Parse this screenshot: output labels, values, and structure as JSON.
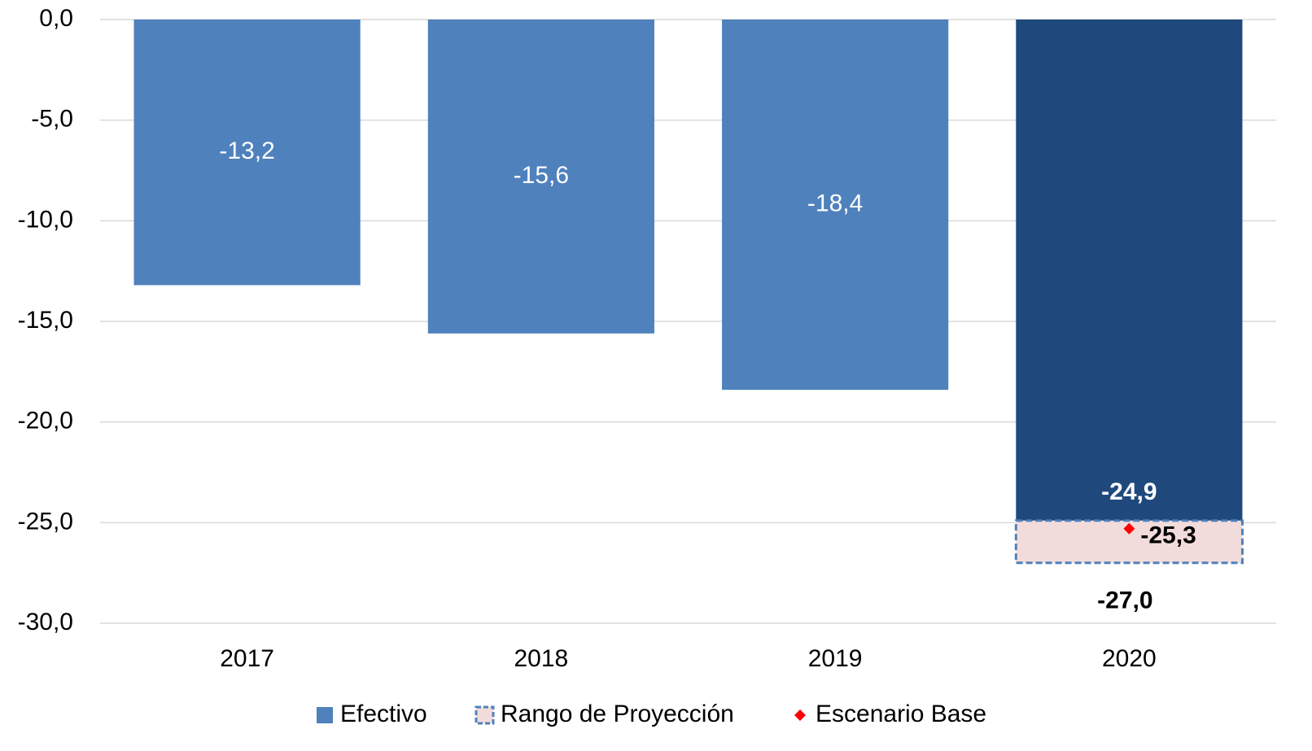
{
  "chart_data": {
    "type": "bar",
    "categories": [
      "2017",
      "2018",
      "2019",
      "2020"
    ],
    "series": [
      {
        "name": "Efectivo",
        "color": "#4f81bd",
        "colors": [
          "#4f81bd",
          "#4f81bd",
          "#4f81bd",
          "#1f497d"
        ],
        "values": [
          -13.2,
          -15.6,
          -18.4,
          -24.9
        ],
        "value_labels": [
          "-13,2",
          "-15,6",
          "-18,4",
          "-24,9"
        ]
      },
      {
        "name": "Rango de Proyección",
        "color": "#f2dcdb",
        "edge_color": "#4f81bd",
        "values": [
          null,
          null,
          null,
          -27.0
        ],
        "value_labels": [
          null,
          null,
          null,
          "-27,0"
        ]
      },
      {
        "name": "Escenario Base",
        "color": "#ff0000",
        "values": [
          null,
          null,
          null,
          -25.3
        ],
        "value_labels": [
          null,
          null,
          null,
          "-25,3"
        ]
      }
    ],
    "ylim": [
      -30,
      0
    ],
    "yticks": [
      {
        "value": 0,
        "label": "0,0"
      },
      {
        "value": -5,
        "label": "-5,0"
      },
      {
        "value": -10,
        "label": "-10,0"
      },
      {
        "value": -15,
        "label": "-15,0"
      },
      {
        "value": -20,
        "label": "-20,0"
      },
      {
        "value": -25,
        "label": "-25,0"
      },
      {
        "value": -30,
        "label": "-30,0"
      }
    ],
    "grid": true
  }
}
